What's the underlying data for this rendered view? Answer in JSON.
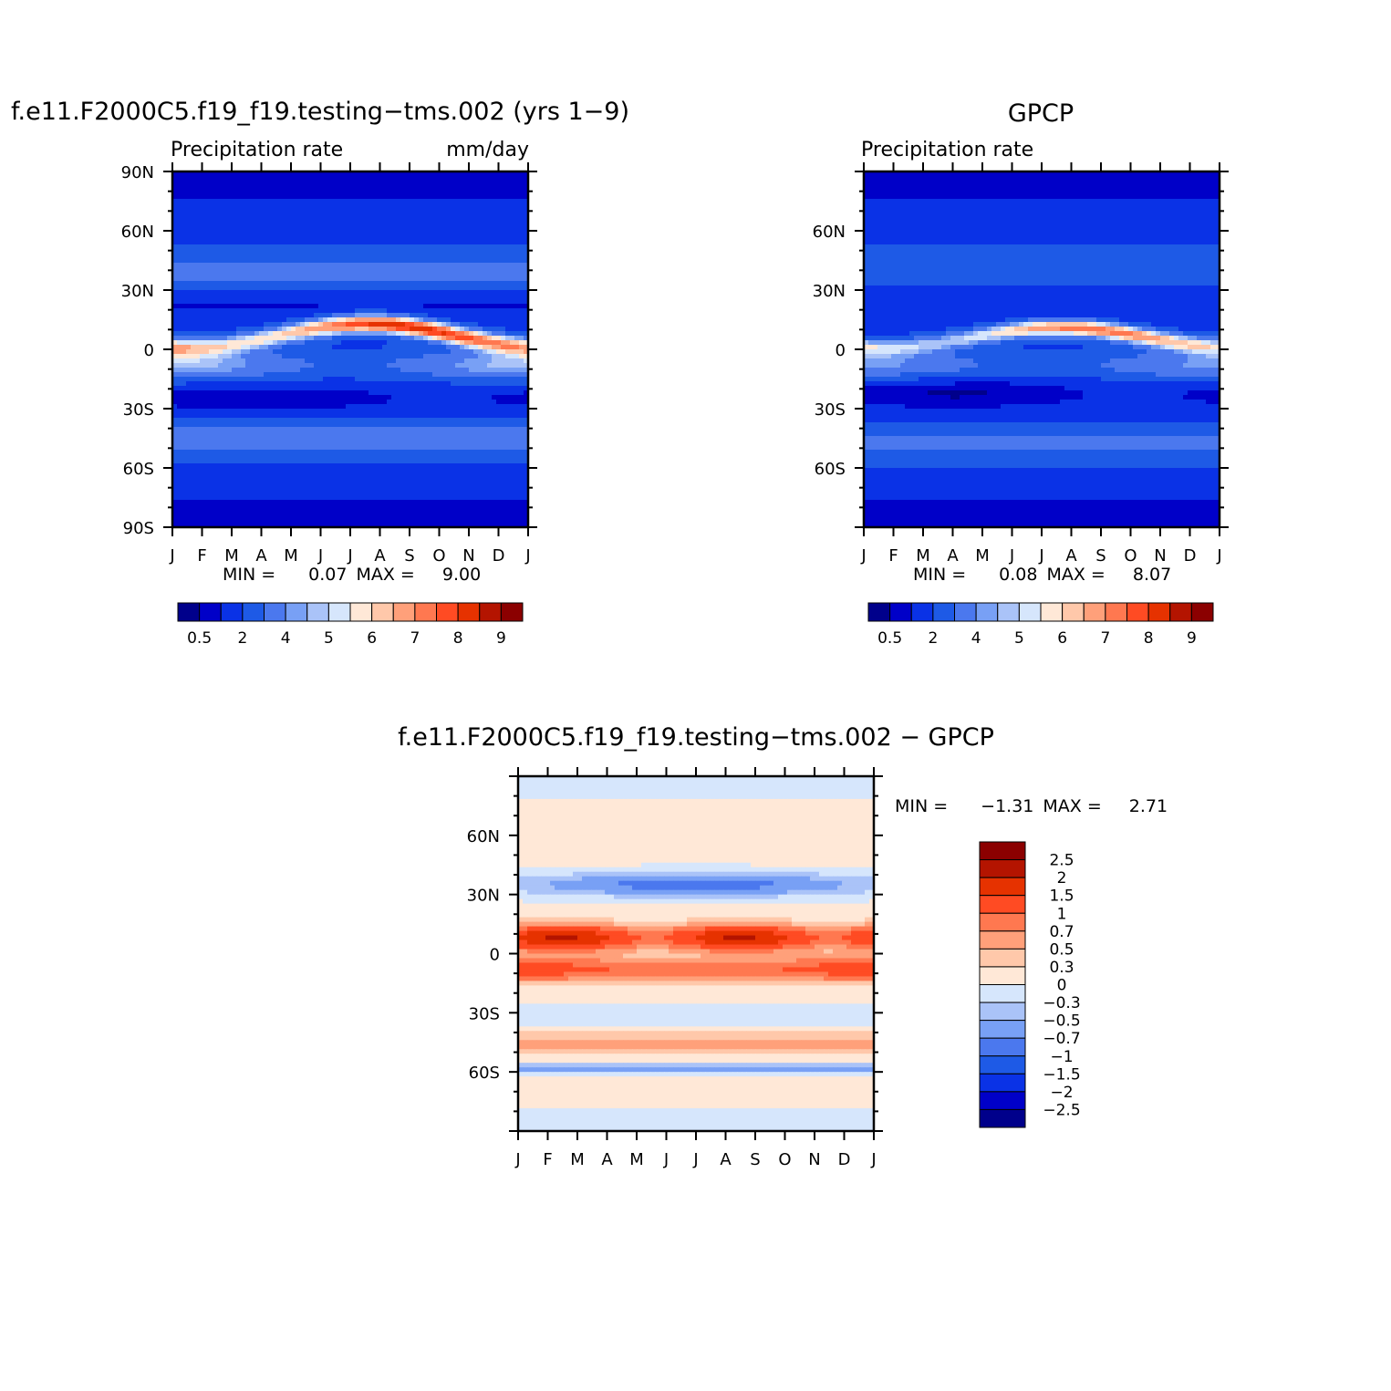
{
  "chart_data": [
    {
      "type": "heatmap",
      "title": "f.e11.F2000C5.f19_f19.testing−tms.002 (yrs 1−9)",
      "left_label": "Precipitation  rate",
      "right_label": "mm/day",
      "x_ticks": [
        "J",
        "F",
        "M",
        "A",
        "M",
        "J",
        "J",
        "A",
        "S",
        "O",
        "N",
        "D",
        "J"
      ],
      "y_ticks": [
        "90N",
        "60N",
        "30N",
        "0",
        "30S",
        "60S",
        "90S"
      ],
      "ylim": [
        -90,
        90
      ],
      "stats": {
        "min_label": "MIN =",
        "min": "0.07",
        "max_label": "MAX =",
        "max": "9.00"
      },
      "colorbar": {
        "labels": [
          "0.5",
          "2",
          "4",
          "5",
          "6",
          "7",
          "8",
          "9"
        ],
        "colors": [
          "#00008b",
          "#0000c8",
          "#0a32e6",
          "#1e5ae6",
          "#4b78ee",
          "#78a0f5",
          "#aac3f8",
          "#d6e6fc",
          "#ffe8d7",
          "#ffc8aa",
          "#ffa07a",
          "#ff7850",
          "#ff4b23",
          "#e63200",
          "#b41400",
          "#8b0000"
        ]
      },
      "field_model": "model",
      "grid": false
    },
    {
      "type": "heatmap",
      "title": "GPCP",
      "left_label": "Precipitation  rate",
      "right_label": "",
      "x_ticks": [
        "J",
        "F",
        "M",
        "A",
        "M",
        "J",
        "J",
        "A",
        "S",
        "O",
        "N",
        "D",
        "J"
      ],
      "y_ticks": [
        "60N",
        "30N",
        "0",
        "30S",
        "60S"
      ],
      "ylim": [
        -90,
        90
      ],
      "stats": {
        "min_label": "MIN =",
        "min": "0.08",
        "max_label": "MAX =",
        "max": "8.07"
      },
      "colorbar": {
        "labels": [
          "0.5",
          "2",
          "4",
          "5",
          "6",
          "7",
          "8",
          "9"
        ],
        "colors": [
          "#00008b",
          "#0000c8",
          "#0a32e6",
          "#1e5ae6",
          "#4b78ee",
          "#78a0f5",
          "#aac3f8",
          "#d6e6fc",
          "#ffe8d7",
          "#ffc8aa",
          "#ffa07a",
          "#ff7850",
          "#ff4b23",
          "#e63200",
          "#b41400",
          "#8b0000"
        ]
      },
      "field_model": "obs",
      "grid": false
    },
    {
      "type": "heatmap",
      "title": "f.e11.F2000C5.f19_f19.testing−tms.002  −  GPCP",
      "x_ticks": [
        "J",
        "F",
        "M",
        "A",
        "M",
        "J",
        "J",
        "A",
        "S",
        "O",
        "N",
        "D",
        "J"
      ],
      "y_ticks": [
        "60N",
        "30N",
        "0",
        "30S",
        "60S"
      ],
      "ylim": [
        -90,
        90
      ],
      "stats": {
        "min_label": "MIN =",
        "min": "−1.31",
        "max_label": "MAX =",
        "max": "2.71"
      },
      "colorbar": {
        "labels": [
          "2.5",
          "2",
          "1.5",
          "1",
          "0.7",
          "0.5",
          "0.3",
          "0",
          "−0.3",
          "−0.5",
          "−0.7",
          "−1",
          "−1.5",
          "−2",
          "−2.5"
        ],
        "colors_top_to_bottom": [
          "#8b0000",
          "#b41400",
          "#e63200",
          "#ff4b23",
          "#ff7850",
          "#ffa07a",
          "#ffc8aa",
          "#ffe8d7",
          "#d6e6fc",
          "#aac3f8",
          "#78a0f5",
          "#4b78ee",
          "#1e5ae6",
          "#0a32e6",
          "#0000c8",
          "#00008b"
        ]
      },
      "field_model": "diff",
      "grid": false
    }
  ]
}
